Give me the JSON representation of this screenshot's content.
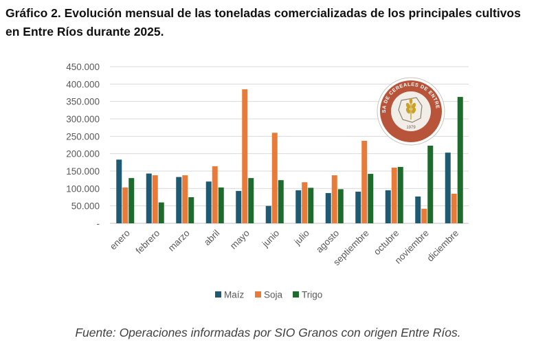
{
  "title": "Gráfico 2. Evolución mensual de las toneladas comercializadas de los principales cultivos en Entre Ríos durante 2025.",
  "source": "Fuente: Operaciones informadas por SIO Granos con origen Entre Ríos.",
  "logo": {
    "arc_text": "BOLSA DE CEREALES DE ENTRE RÍOS",
    "year": "1979",
    "colors": {
      "ring": "#b8543a",
      "inner": "#f3ede7",
      "accent": "#c9a227"
    }
  },
  "chart_data": {
    "type": "bar",
    "categories": [
      "enero",
      "febrero",
      "marzo",
      "abril",
      "mayo",
      "junio",
      "julio",
      "agosto",
      "septiembre",
      "octubre",
      "noviembre",
      "diciembre"
    ],
    "series": [
      {
        "name": "Maíz",
        "color": "#1f5a73",
        "values": [
          183000,
          143000,
          133000,
          120000,
          93000,
          50000,
          95000,
          87000,
          91000,
          95000,
          77000,
          203000
        ]
      },
      {
        "name": "Soja",
        "color": "#e97b3a",
        "values": [
          103000,
          138000,
          138000,
          164000,
          385000,
          260000,
          118000,
          138000,
          237000,
          160000,
          42000,
          85000
        ]
      },
      {
        "name": "Trigo",
        "color": "#1e6b2e",
        "values": [
          130000,
          60000,
          75000,
          103000,
          130000,
          124000,
          102000,
          98000,
          142000,
          162000,
          223000,
          363000
        ]
      }
    ],
    "ylim": [
      0,
      450000
    ],
    "yticks": [
      {
        "value": 0,
        "label": "-"
      },
      {
        "value": 50000,
        "label": "50.000"
      },
      {
        "value": 100000,
        "label": "100.000"
      },
      {
        "value": 150000,
        "label": "150.000"
      },
      {
        "value": 200000,
        "label": "200.000"
      },
      {
        "value": 250000,
        "label": "250.000"
      },
      {
        "value": 300000,
        "label": "300.000"
      },
      {
        "value": 350000,
        "label": "350.000"
      },
      {
        "value": 400000,
        "label": "400.000"
      },
      {
        "value": 450000,
        "label": "450.000"
      }
    ],
    "grid": true,
    "legend": "bottom"
  }
}
